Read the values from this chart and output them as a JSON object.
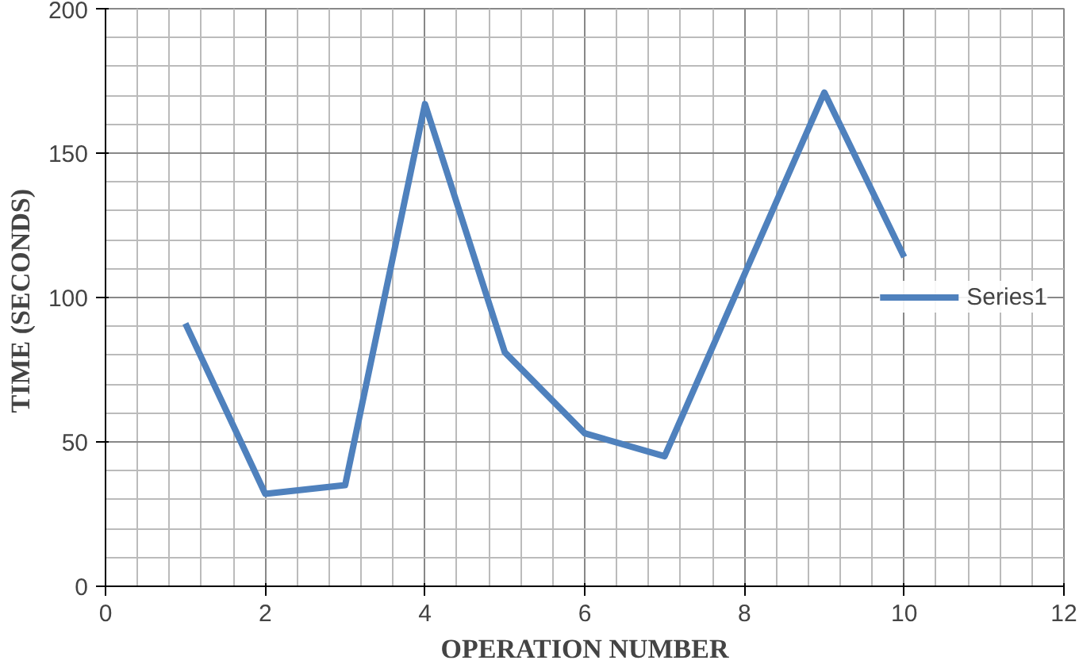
{
  "chart_data": {
    "type": "line",
    "xlabel": "OPERATION NUMBER",
    "ylabel": "TIME  (SECONDS)",
    "x": [
      1,
      2,
      3,
      4,
      5,
      6,
      7,
      8,
      9,
      10
    ],
    "series": [
      {
        "name": "Series1",
        "color": "#4f81bd",
        "values": [
          91,
          32,
          35,
          167,
          81,
          53,
          45,
          108,
          171,
          114
        ]
      }
    ],
    "xlim": [
      0,
      12
    ],
    "xticks": [
      0,
      2,
      4,
      6,
      8,
      10,
      12
    ],
    "ylim": [
      0,
      200
    ],
    "yticks": [
      0,
      50,
      100,
      150,
      200
    ],
    "grid": true,
    "legend": "right",
    "line_style": "solid",
    "marker": "none"
  }
}
